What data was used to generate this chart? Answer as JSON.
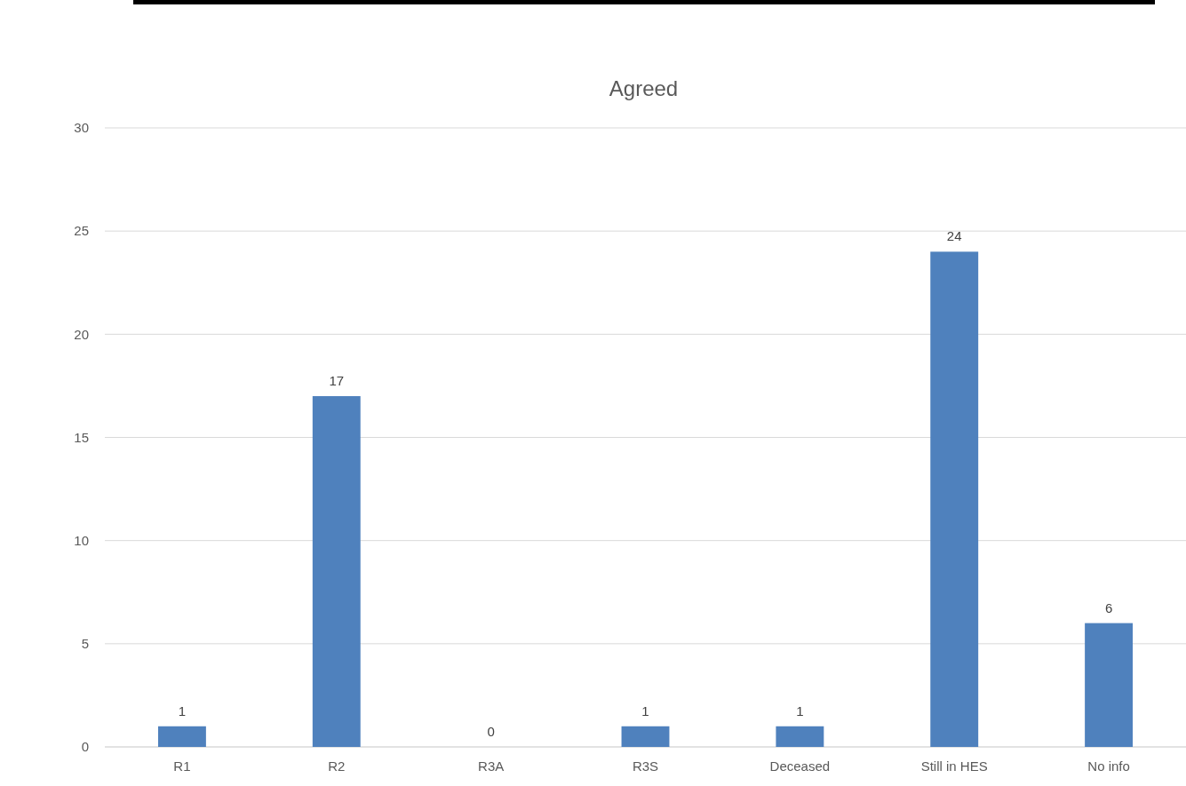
{
  "chart_data": {
    "type": "bar",
    "title": "Agreed",
    "categories": [
      "R1",
      "R2",
      "R3A",
      "R3S",
      "Deceased",
      "Still in HES",
      "No info"
    ],
    "values": [
      1,
      17,
      0,
      1,
      1,
      24,
      6
    ],
    "color": "#4f81bd",
    "ylim": [
      0,
      30
    ],
    "yticks": [
      0,
      5,
      10,
      15,
      20,
      25,
      30
    ],
    "grid": "y",
    "data_labels": true
  }
}
